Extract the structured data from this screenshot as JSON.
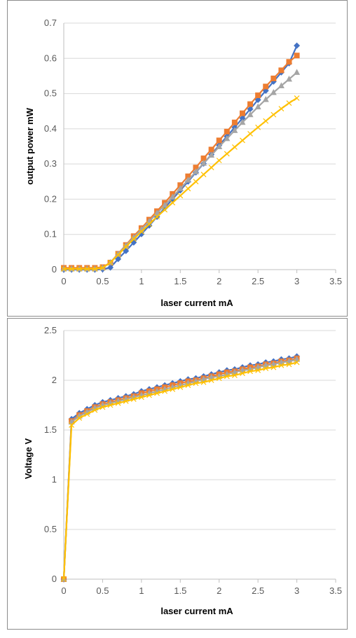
{
  "colors": {
    "series1": "#4472c4",
    "series2": "#ed7d31",
    "series3": "#a5a5a5",
    "series4": "#ffc000",
    "gridline": "#d9d9d9",
    "axis": "#bfbfbf"
  },
  "chart_data": [
    {
      "type": "line",
      "title": "",
      "xlabel": "laser current mA",
      "ylabel": "output power mW",
      "xlim": [
        0,
        3.5
      ],
      "ylim": [
        0,
        0.7
      ],
      "xticks": [
        0,
        0.5,
        1,
        1.5,
        2,
        2.5,
        3,
        3.5
      ],
      "yticks": [
        0,
        0.1,
        0.2,
        0.3,
        0.4,
        0.5,
        0.6,
        0.7
      ],
      "grid": "horizontal",
      "legend": "none",
      "x": [
        0,
        0.1,
        0.2,
        0.3,
        0.4,
        0.5,
        0.6,
        0.7,
        0.8,
        0.9,
        1.0,
        1.1,
        1.2,
        1.3,
        1.4,
        1.5,
        1.6,
        1.7,
        1.8,
        1.9,
        2.0,
        2.1,
        2.2,
        2.3,
        2.4,
        2.5,
        2.6,
        2.7,
        2.8,
        2.9,
        3.0
      ],
      "series": [
        {
          "marker": "diamond",
          "color": "series1",
          "values": [
            0.0,
            0.0,
            0.0,
            0.0,
            0.0,
            0.001,
            0.006,
            0.03,
            0.053,
            0.077,
            0.101,
            0.125,
            0.15,
            0.175,
            0.2,
            0.225,
            0.25,
            0.276,
            0.301,
            0.327,
            0.353,
            0.378,
            0.404,
            0.43,
            0.456,
            0.482,
            0.508,
            0.534,
            0.56,
            0.586,
            0.636
          ]
        },
        {
          "marker": "square",
          "color": "series2",
          "values": [
            0.005,
            0.005,
            0.005,
            0.005,
            0.005,
            0.007,
            0.02,
            0.045,
            0.07,
            0.095,
            0.118,
            0.142,
            0.166,
            0.19,
            0.215,
            0.24,
            0.265,
            0.29,
            0.316,
            0.341,
            0.367,
            0.392,
            0.418,
            0.444,
            0.47,
            0.495,
            0.52,
            0.543,
            0.566,
            0.59,
            0.608
          ]
        },
        {
          "marker": "triangle",
          "color": "series3",
          "values": [
            0.002,
            0.002,
            0.002,
            0.002,
            0.002,
            0.005,
            0.02,
            0.044,
            0.068,
            0.091,
            0.114,
            0.137,
            0.16,
            0.183,
            0.206,
            0.23,
            0.254,
            0.278,
            0.302,
            0.325,
            0.349,
            0.372,
            0.395,
            0.418,
            0.44,
            0.462,
            0.483,
            0.503,
            0.522,
            0.541,
            0.56
          ]
        },
        {
          "marker": "x",
          "color": "series4",
          "values": [
            0.002,
            0.002,
            0.002,
            0.002,
            0.002,
            0.005,
            0.02,
            0.042,
            0.065,
            0.087,
            0.108,
            0.129,
            0.15,
            0.17,
            0.19,
            0.21,
            0.23,
            0.25,
            0.27,
            0.29,
            0.31,
            0.329,
            0.348,
            0.367,
            0.386,
            0.404,
            0.422,
            0.44,
            0.457,
            0.473,
            0.487
          ]
        }
      ]
    },
    {
      "type": "line",
      "title": "",
      "xlabel": "laser current mA",
      "ylabel": "Voltage V",
      "xlim": [
        0,
        3.5
      ],
      "ylim": [
        0,
        2.5
      ],
      "xticks": [
        0,
        0.5,
        1,
        1.5,
        2,
        2.5,
        3,
        3.5
      ],
      "yticks": [
        0,
        0.5,
        1,
        1.5,
        2,
        2.5
      ],
      "grid": "horizontal",
      "legend": "none",
      "x": [
        0,
        0.1,
        0.2,
        0.3,
        0.4,
        0.5,
        0.6,
        0.7,
        0.8,
        0.9,
        1.0,
        1.1,
        1.2,
        1.3,
        1.4,
        1.5,
        1.6,
        1.7,
        1.8,
        1.9,
        2.0,
        2.1,
        2.2,
        2.3,
        2.4,
        2.5,
        2.6,
        2.7,
        2.8,
        2.9,
        3.0
      ],
      "series": [
        {
          "marker": "diamond",
          "color": "series1",
          "values": [
            0.0,
            1.61,
            1.67,
            1.71,
            1.75,
            1.78,
            1.8,
            1.82,
            1.84,
            1.86,
            1.89,
            1.91,
            1.93,
            1.95,
            1.97,
            1.99,
            2.01,
            2.02,
            2.04,
            2.06,
            2.08,
            2.1,
            2.11,
            2.13,
            2.15,
            2.16,
            2.18,
            2.19,
            2.21,
            2.22,
            2.24
          ]
        },
        {
          "marker": "square",
          "color": "series2",
          "values": [
            0.0,
            1.59,
            1.65,
            1.69,
            1.73,
            1.76,
            1.78,
            1.8,
            1.82,
            1.84,
            1.87,
            1.89,
            1.91,
            1.93,
            1.95,
            1.97,
            1.99,
            2.0,
            2.02,
            2.04,
            2.06,
            2.08,
            2.09,
            2.11,
            2.13,
            2.14,
            2.16,
            2.17,
            2.19,
            2.2,
            2.22
          ]
        },
        {
          "marker": "triangle",
          "color": "series3",
          "values": [
            0.0,
            1.58,
            1.64,
            1.68,
            1.72,
            1.75,
            1.77,
            1.79,
            1.81,
            1.83,
            1.85,
            1.87,
            1.89,
            1.91,
            1.93,
            1.95,
            1.97,
            1.99,
            2.01,
            2.03,
            2.04,
            2.06,
            2.08,
            2.1,
            2.11,
            2.13,
            2.15,
            2.16,
            2.18,
            2.19,
            2.21
          ]
        },
        {
          "marker": "x",
          "color": "series4",
          "values": [
            0.0,
            1.55,
            1.62,
            1.66,
            1.7,
            1.73,
            1.75,
            1.77,
            1.79,
            1.81,
            1.83,
            1.85,
            1.87,
            1.89,
            1.91,
            1.93,
            1.95,
            1.97,
            1.98,
            2.0,
            2.02,
            2.04,
            2.05,
            2.07,
            2.09,
            2.1,
            2.12,
            2.13,
            2.15,
            2.16,
            2.18
          ]
        }
      ]
    }
  ]
}
